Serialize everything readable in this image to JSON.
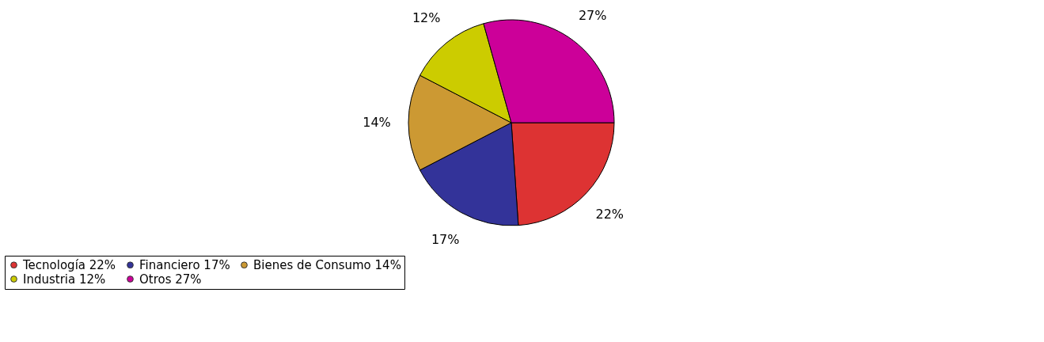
{
  "chart_data": {
    "type": "pie",
    "categories": [
      "Tecnología",
      "Financiero",
      "Bienes de Consumo",
      "Industria",
      "Otros"
    ],
    "values": [
      22,
      17,
      14,
      12,
      27
    ],
    "value_labels": [
      "22%",
      "17%",
      "14%",
      "12%",
      "27%"
    ],
    "colors": [
      "#dd3333",
      "#333399",
      "#cc9933",
      "#cccc00",
      "#cc0099"
    ],
    "legend": "bottom"
  }
}
